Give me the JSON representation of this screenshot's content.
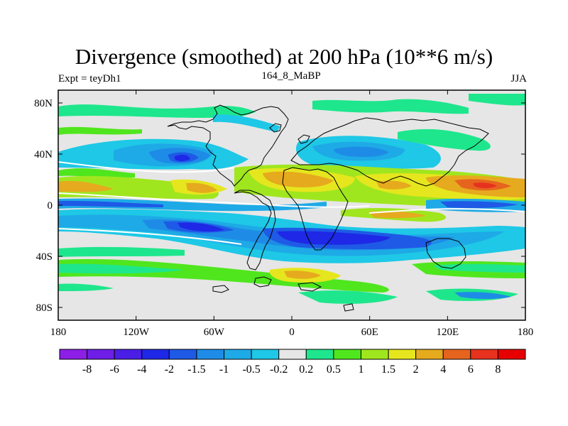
{
  "chart_data": {
    "type": "heatmap",
    "title": "Divergence (smoothed) at 200 hPa (10**6 m/s)",
    "subtitle_left": "Expt = teyDh1",
    "subtitle_center": "164_8_MaBP",
    "subtitle_right": "JJA",
    "x_range": [
      -180,
      180
    ],
    "y_range": [
      -90,
      90
    ],
    "x_ticks": [
      {
        "value": -180,
        "label": "180"
      },
      {
        "value": -120,
        "label": "120W"
      },
      {
        "value": -60,
        "label": "60W"
      },
      {
        "value": 0,
        "label": "0"
      },
      {
        "value": 60,
        "label": "60E"
      },
      {
        "value": 120,
        "label": "120E"
      },
      {
        "value": 180,
        "label": "180"
      }
    ],
    "y_ticks": [
      {
        "value": 80,
        "label": "80N"
      },
      {
        "value": 40,
        "label": "40N"
      },
      {
        "value": 0,
        "label": "0"
      },
      {
        "value": -40,
        "label": "40S"
      },
      {
        "value": -80,
        "label": "80S"
      }
    ],
    "colorbar": {
      "levels": [
        "-8",
        "-6",
        "-4",
        "-2",
        "-1.5",
        "-1",
        "-0.5",
        "-0.2",
        "0.2",
        "0.5",
        "1",
        "1.5",
        "2",
        "4",
        "6",
        "8"
      ],
      "colors": [
        "#8c1ee6",
        "#6e1ee6",
        "#4b1ee6",
        "#1e28e6",
        "#1e5ae6",
        "#1e8ce6",
        "#1eaae6",
        "#1ec8e6",
        "#e6e6e6",
        "#1ee68c",
        "#50e61e",
        "#a0e61e",
        "#e6e61e",
        "#e6aa1e",
        "#e6641e",
        "#e6321e",
        "#e60000"
      ]
    }
  }
}
